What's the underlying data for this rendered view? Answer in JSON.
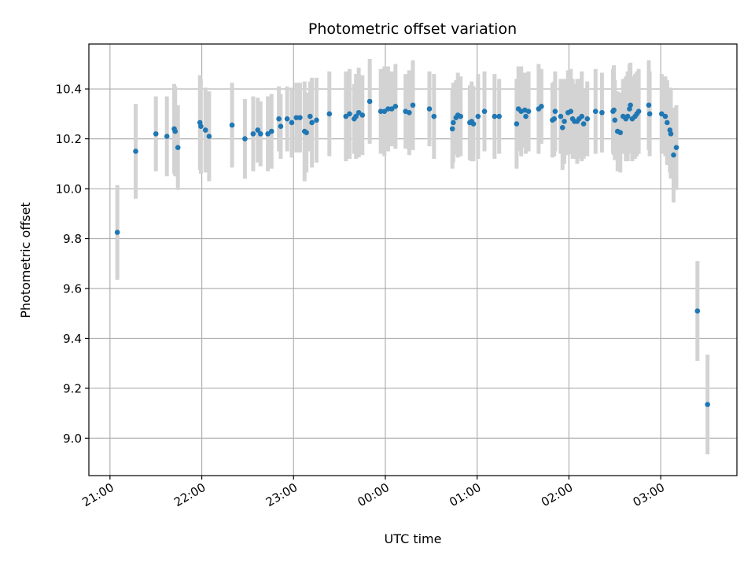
{
  "chart_data": {
    "type": "scatter",
    "title": "Photometric offset variation",
    "xlabel": "UTC time",
    "ylabel": "Photometric offset",
    "x_unit": "hours since 21:00 UTC",
    "xlim": [
      -0.23,
      6.83
    ],
    "ylim": [
      8.85,
      10.58
    ],
    "x_ticks": [
      {
        "value": 0,
        "label": "21:00"
      },
      {
        "value": 1,
        "label": "22:00"
      },
      {
        "value": 2,
        "label": "23:00"
      },
      {
        "value": 3,
        "label": "00:00"
      },
      {
        "value": 4,
        "label": "01:00"
      },
      {
        "value": 5,
        "label": "02:00"
      },
      {
        "value": 6,
        "label": "03:00"
      }
    ],
    "y_ticks": [
      {
        "value": 9.0,
        "label": "9.0"
      },
      {
        "value": 9.2,
        "label": "9.2"
      },
      {
        "value": 9.4,
        "label": "9.4"
      },
      {
        "value": 9.6,
        "label": "9.6"
      },
      {
        "value": 9.8,
        "label": "9.8"
      },
      {
        "value": 10.0,
        "label": "10.0"
      },
      {
        "value": 10.2,
        "label": "10.2"
      },
      {
        "value": 10.4,
        "label": "10.4"
      }
    ],
    "grid": true,
    "colors": {
      "points": "#1f77b4",
      "errorbars": "#d3d3d3",
      "grid": "#b0b0b0"
    },
    "series": [
      {
        "points": [
          [
            0.08,
            9.825,
            0.19
          ],
          [
            0.28,
            10.15,
            0.19
          ],
          [
            0.5,
            10.22,
            0.15
          ],
          [
            0.62,
            10.21,
            0.16
          ],
          [
            0.7,
            10.24,
            0.18
          ],
          [
            0.71,
            10.23,
            0.18
          ],
          [
            0.74,
            10.165,
            0.17
          ],
          [
            0.98,
            10.265,
            0.19
          ],
          [
            0.99,
            10.25,
            0.19
          ],
          [
            1.04,
            10.235,
            0.17
          ],
          [
            1.08,
            10.21,
            0.18
          ],
          [
            1.33,
            10.255,
            0.17
          ],
          [
            1.47,
            10.2,
            0.16
          ],
          [
            1.56,
            10.22,
            0.15
          ],
          [
            1.61,
            10.235,
            0.13
          ],
          [
            1.64,
            10.22,
            0.13
          ],
          [
            1.72,
            10.22,
            0.15
          ],
          [
            1.76,
            10.23,
            0.15
          ],
          [
            1.84,
            10.28,
            0.13
          ],
          [
            1.86,
            10.25,
            0.13
          ],
          [
            1.93,
            10.28,
            0.13
          ],
          [
            1.98,
            10.265,
            0.14
          ],
          [
            2.03,
            10.285,
            0.14
          ],
          [
            2.07,
            10.285,
            0.14
          ],
          [
            2.12,
            10.23,
            0.2
          ],
          [
            2.14,
            10.225,
            0.16
          ],
          [
            2.18,
            10.29,
            0.14
          ],
          [
            2.2,
            10.265,
            0.18
          ],
          [
            2.25,
            10.275,
            0.17
          ],
          [
            2.39,
            10.3,
            0.17
          ],
          [
            2.57,
            10.29,
            0.18
          ],
          [
            2.61,
            10.3,
            0.18
          ],
          [
            2.66,
            10.28,
            0.14
          ],
          [
            2.68,
            10.29,
            0.17
          ],
          [
            2.71,
            10.305,
            0.18
          ],
          [
            2.75,
            10.295,
            0.16
          ],
          [
            2.83,
            10.35,
            0.17
          ],
          [
            2.95,
            10.31,
            0.17
          ],
          [
            2.99,
            10.31,
            0.18
          ],
          [
            3.03,
            10.32,
            0.17
          ],
          [
            3.07,
            10.32,
            0.15
          ],
          [
            3.11,
            10.33,
            0.17
          ],
          [
            3.22,
            10.31,
            0.15
          ],
          [
            3.26,
            10.305,
            0.17
          ],
          [
            3.3,
            10.335,
            0.18
          ],
          [
            3.48,
            10.32,
            0.15
          ],
          [
            3.53,
            10.29,
            0.17
          ],
          [
            3.73,
            10.24,
            0.16
          ],
          [
            3.74,
            10.265,
            0.16
          ],
          [
            3.77,
            10.285,
            0.15
          ],
          [
            3.79,
            10.295,
            0.17
          ],
          [
            3.82,
            10.29,
            0.16
          ],
          [
            3.92,
            10.265,
            0.15
          ],
          [
            3.94,
            10.27,
            0.16
          ],
          [
            3.96,
            10.26,
            0.15
          ],
          [
            4.01,
            10.29,
            0.17
          ],
          [
            4.08,
            10.31,
            0.16
          ],
          [
            4.19,
            10.29,
            0.17
          ],
          [
            4.24,
            10.29,
            0.15
          ],
          [
            4.43,
            10.26,
            0.18
          ],
          [
            4.45,
            10.32,
            0.17
          ],
          [
            4.48,
            10.31,
            0.18
          ],
          [
            4.52,
            10.315,
            0.15
          ],
          [
            4.53,
            10.29,
            0.15
          ],
          [
            4.56,
            10.31,
            0.16
          ],
          [
            4.67,
            10.32,
            0.18
          ],
          [
            4.7,
            10.33,
            0.15
          ],
          [
            4.82,
            10.275,
            0.15
          ],
          [
            4.84,
            10.28,
            0.15
          ],
          [
            4.85,
            10.31,
            0.16
          ],
          [
            4.91,
            10.29,
            0.15
          ],
          [
            4.93,
            10.245,
            0.17
          ],
          [
            4.95,
            10.27,
            0.17
          ],
          [
            4.99,
            10.305,
            0.17
          ],
          [
            5.02,
            10.31,
            0.17
          ],
          [
            5.04,
            10.28,
            0.16
          ],
          [
            5.06,
            10.27,
            0.15
          ],
          [
            5.09,
            10.27,
            0.17
          ],
          [
            5.11,
            10.28,
            0.16
          ],
          [
            5.14,
            10.29,
            0.18
          ],
          [
            5.16,
            10.26,
            0.14
          ],
          [
            5.2,
            10.28,
            0.15
          ],
          [
            5.29,
            10.31,
            0.17
          ],
          [
            5.36,
            10.305,
            0.16
          ],
          [
            5.48,
            10.31,
            0.17
          ],
          [
            5.49,
            10.315,
            0.18
          ],
          [
            5.5,
            10.275,
            0.16
          ],
          [
            5.53,
            10.23,
            0.16
          ],
          [
            5.56,
            10.225,
            0.16
          ],
          [
            5.59,
            10.29,
            0.15
          ],
          [
            5.62,
            10.28,
            0.17
          ],
          [
            5.64,
            10.29,
            0.18
          ],
          [
            5.66,
            10.32,
            0.18
          ],
          [
            5.67,
            10.335,
            0.17
          ],
          [
            5.69,
            10.28,
            0.17
          ],
          [
            5.72,
            10.29,
            0.17
          ],
          [
            5.74,
            10.3,
            0.17
          ],
          [
            5.76,
            10.31,
            0.17
          ],
          [
            5.87,
            10.335,
            0.18
          ],
          [
            5.88,
            10.3,
            0.17
          ],
          [
            6.01,
            10.3,
            0.16
          ],
          [
            6.05,
            10.29,
            0.16
          ],
          [
            6.07,
            10.265,
            0.17
          ],
          [
            6.1,
            10.235,
            0.17
          ],
          [
            6.11,
            10.22,
            0.18
          ],
          [
            6.14,
            10.135,
            0.19
          ],
          [
            6.17,
            10.165,
            0.17
          ],
          [
            6.4,
            9.51,
            0.2
          ],
          [
            6.51,
            9.135,
            0.2
          ]
        ]
      }
    ]
  }
}
